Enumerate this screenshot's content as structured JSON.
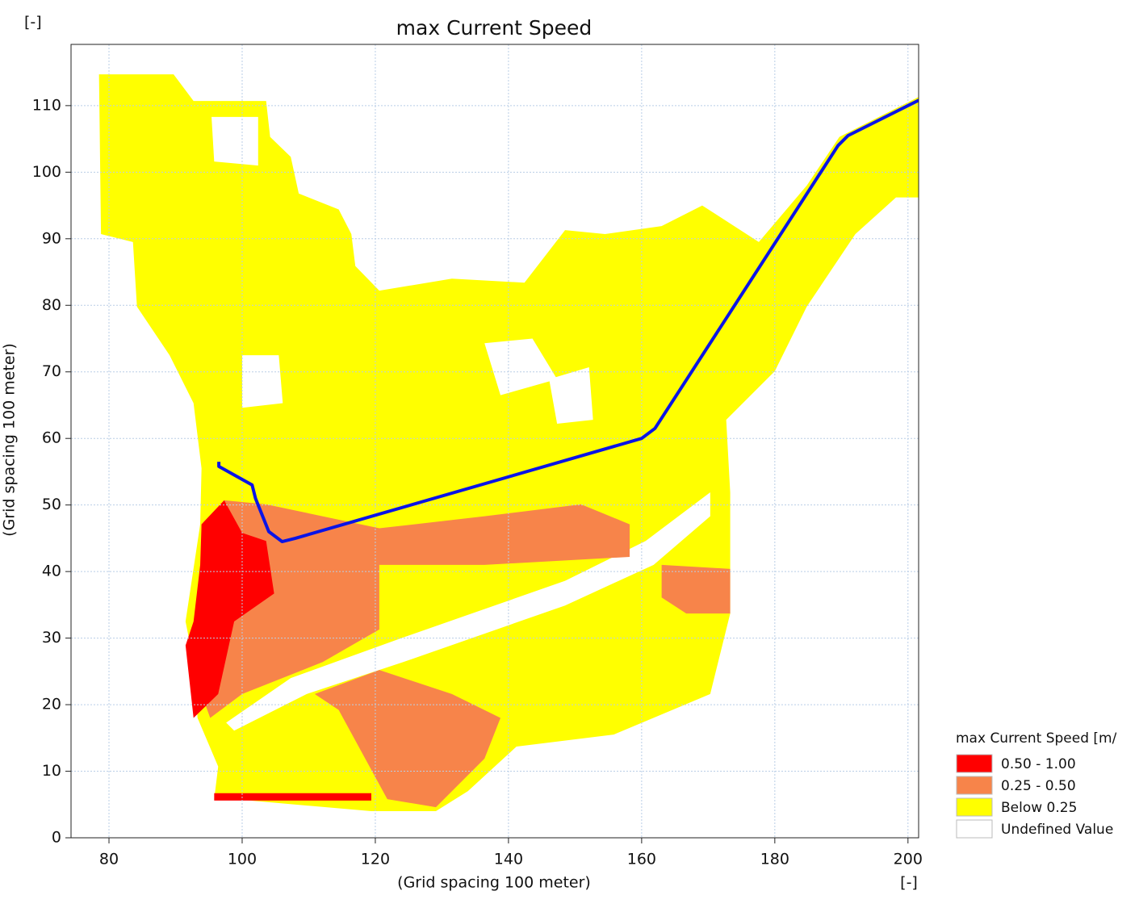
{
  "chart_data": {
    "type": "map",
    "title": "max Current Speed",
    "x_label": "(Grid spacing 100 meter)",
    "y_label": "(Grid spacing 100 meter)",
    "x_unit": "[-]",
    "y_unit": "[-]",
    "xlim": [
      74.3,
      201.6
    ],
    "ylim": [
      0,
      119.2
    ],
    "xticks": [
      80,
      100,
      120,
      140,
      160,
      180,
      200
    ],
    "yticks": [
      0,
      10,
      20,
      30,
      40,
      50,
      60,
      70,
      80,
      90,
      100,
      110
    ],
    "grid": true,
    "legend_title": "max Current Speed [m/s]",
    "series": [
      {
        "name": "Below 0.25",
        "color": "#ffff00",
        "areas": [
          {
            "x": [
              78.5,
              89.7,
              92.7,
              103.6,
              104.2,
              107.3,
              108.5,
              114.5,
              116.4,
              117,
              120.6,
              131.5,
              142.4,
              148.5,
              154.5,
              163,
              169.1,
              177.6,
              184.8,
              189.7,
              201.6,
              201.6,
              198.2,
              192.1,
              184.8,
              180,
              172.7,
              173.3,
              173.3,
              170.3,
              155.8,
              141.2,
              133.9,
              129.1,
              119.4,
              98.8,
              95.8,
              96.4,
              93.3,
              92.7,
              91.5,
              93.7,
              93.9,
              92.7,
              89.1,
              84.2,
              83.6,
              78.8
            ],
            "y": [
              114.7,
              114.7,
              110.7,
              110.7,
              105.3,
              102.3,
              96.8,
              94.4,
              90.7,
              85.9,
              82.2,
              84,
              83.4,
              91.3,
              90.7,
              91.9,
              95,
              89.5,
              98,
              105.3,
              111.3,
              96.2,
              96.2,
              90.7,
              79.8,
              70.1,
              62.8,
              51.9,
              33.7,
              21.6,
              15.5,
              13.7,
              7,
              4,
              4,
              5.8,
              5.8,
              10.7,
              18,
              26.4,
              32.5,
              47.1,
              55.5,
              65.3,
              72.5,
              79.8,
              89.5,
              90.7
            ]
          }
        ]
      },
      {
        "name": "Undefined Value",
        "color": "#ffffff",
        "areas": [
          {
            "x": [
              97.6,
              107.3,
              124.2,
              148.5,
              160.6,
              170.3,
              170.3,
              161.8,
              148.5,
              124.2,
              109.7,
              98.8
            ],
            "y": [
              17.3,
              24,
              30.1,
              38.6,
              44.6,
              51.9,
              48.3,
              41,
              34.9,
              26.4,
              21.6,
              16.1
            ]
          },
          {
            "x": [
              95.4,
              102.4,
              102.4,
              95.8
            ],
            "y": [
              108.3,
              108.3,
              101,
              101.6
            ]
          },
          {
            "x": [
              136.4,
              143.6,
              147.3,
              138.8
            ],
            "y": [
              74.3,
              75,
              68.9,
              66.5
            ]
          },
          {
            "x": [
              146.1,
              152.1,
              152.7,
              147.3
            ],
            "y": [
              68.9,
              70.7,
              62.8,
              62.2
            ]
          },
          {
            "x": [
              100,
              105.5,
              106.1,
              100
            ],
            "y": [
              72.5,
              72.5,
              65.3,
              64.6
            ]
          }
        ]
      },
      {
        "name": "0.25 - 0.50",
        "color": "#f7844a",
        "areas": [
          {
            "x": [
              93.9,
              97.3,
              103.6,
              120.6,
              136.4,
              150.9,
              158.2,
              158.2,
              136.4,
              120.6,
              120.6,
              112.1,
              100,
              95.2,
              93.9
            ],
            "y": [
              47.1,
              50.7,
              50.1,
              46.5,
              48.3,
              50.1,
              47.1,
              42.2,
              41,
              41,
              31.3,
              26.4,
              21.6,
              18,
              21.6
            ]
          },
          {
            "x": [
              110.9,
              120.6,
              131.5,
              138.8,
              136.4,
              129.1,
              121.8,
              114.5
            ],
            "y": [
              21.6,
              25.2,
              21.6,
              18,
              11.9,
              4.6,
              5.8,
              19.2
            ]
          },
          {
            "x": [
              163,
              173.3,
              173.3,
              166.7,
              163
            ],
            "y": [
              41,
              40.4,
              33.7,
              33.7,
              36.1
            ]
          }
        ]
      },
      {
        "name": "0.50 - 1.00",
        "color": "#ff0000",
        "areas": [
          {
            "x": [
              93.9,
              97.3,
              100,
              103.6,
              104.8,
              98.8,
              96.4,
              92.7,
              91.5,
              92.7,
              93.7
            ],
            "y": [
              47.1,
              50.7,
              45.8,
              44.6,
              36.7,
              32.5,
              21.6,
              18,
              28.9,
              32.5,
              41
            ]
          },
          {
            "x": [
              95.8,
              119.4,
              119.4,
              95.8
            ],
            "y": [
              6.7,
              6.7,
              5.6,
              5.6
            ]
          }
        ]
      }
    ],
    "legend_order": [
      3,
      2,
      0,
      1
    ],
    "track": {
      "color": "#0a14e6",
      "x": [
        96.5,
        96.5,
        101.5,
        102,
        104,
        106,
        108,
        160,
        162,
        189.5,
        191,
        201.6
      ],
      "y": [
        56.5,
        55.8,
        53,
        51,
        46,
        44.5,
        45,
        60,
        61.5,
        104,
        105.5,
        110.8
      ]
    }
  }
}
